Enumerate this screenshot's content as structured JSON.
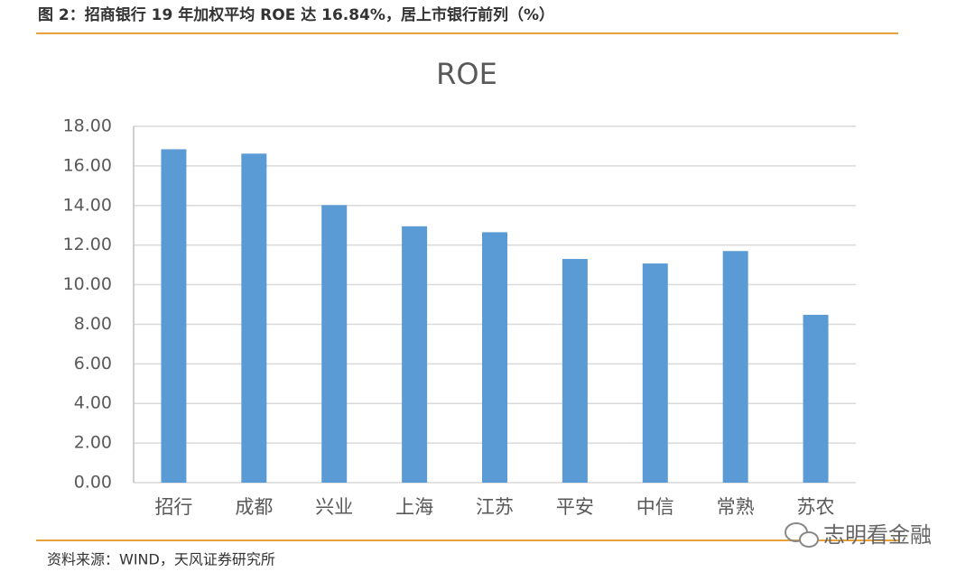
{
  "header": {
    "title": "图 2：招商银行 19 年加权平均 ROE 达 16.84%，居上市银行前列（%）"
  },
  "chart_data": {
    "type": "bar",
    "title": "ROE",
    "categories": [
      "招行",
      "成都",
      "兴业",
      "上海",
      "江苏",
      "平安",
      "中信",
      "常熟",
      "苏农"
    ],
    "values": [
      16.84,
      16.62,
      14.02,
      12.95,
      12.65,
      11.3,
      11.07,
      11.7,
      8.48
    ],
    "color": "#5b9bd5",
    "ylim": [
      0,
      18
    ],
    "yticks": [
      {
        "value": 0,
        "label": "0.00"
      },
      {
        "value": 2,
        "label": "2.00"
      },
      {
        "value": 4,
        "label": "4.00"
      },
      {
        "value": 6,
        "label": "6.00"
      },
      {
        "value": 8,
        "label": "8.00"
      },
      {
        "value": 10,
        "label": "10.00"
      },
      {
        "value": 12,
        "label": "12.00"
      },
      {
        "value": 14,
        "label": "14.00"
      },
      {
        "value": 16,
        "label": "16.00"
      },
      {
        "value": 18,
        "label": "18.00"
      }
    ],
    "grid": true
  },
  "source": "资料来源：WIND，天风证券研究所",
  "watermark": "志明看金融"
}
